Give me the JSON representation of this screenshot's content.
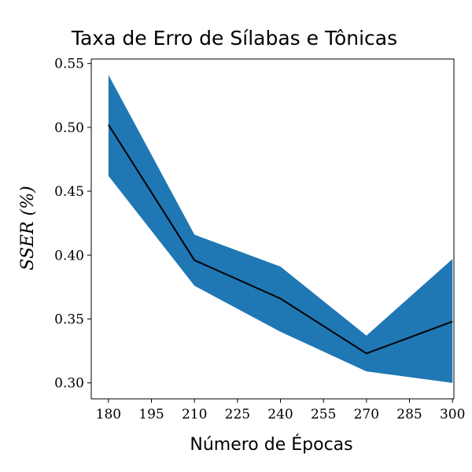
{
  "chart_data": {
    "type": "line",
    "title": "Taxa de Erro de Sílabas e Tônicas",
    "xlabel": "Número de Épocas",
    "ylabel": "SSER (%)",
    "x": [
      180,
      210,
      240,
      270,
      300
    ],
    "series": [
      {
        "values": [
          0.502,
          0.396,
          0.366,
          0.323,
          0.348
        ],
        "lower": [
          0.462,
          0.376,
          0.34,
          0.309,
          0.3
        ],
        "upper": [
          0.541,
          0.416,
          0.391,
          0.337,
          0.397
        ]
      }
    ],
    "xticks": [
      180,
      195,
      210,
      225,
      240,
      255,
      270,
      285,
      300
    ],
    "yticks": [
      0.3,
      0.35,
      0.4,
      0.45,
      0.5,
      0.55
    ],
    "xtick_labels": [
      "180",
      "195",
      "210",
      "225",
      "240",
      "255",
      "270",
      "285",
      "300"
    ],
    "ytick_labels": [
      "0.30",
      "0.35",
      "0.40",
      "0.45",
      "0.50",
      "0.55"
    ],
    "xlim": [
      174,
      300.5
    ],
    "ylim": [
      0.2875,
      0.5535
    ],
    "grid": false,
    "legend": "none",
    "colors": {
      "band": "#1f77b4",
      "line": "#000000"
    }
  }
}
